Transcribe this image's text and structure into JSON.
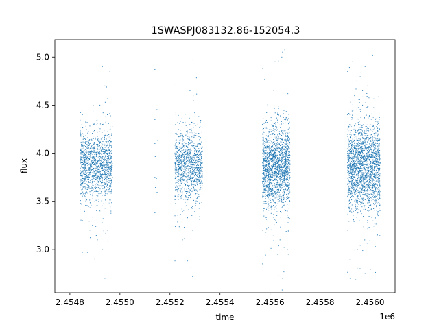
{
  "chart_data": {
    "type": "scatter",
    "title": "1SWASPJ083132.86-152054.3",
    "xlabel": "time",
    "ylabel": "flux",
    "x_offset_label": "1e6",
    "x_unit_scale": 1000000,
    "xlim": [
      2.45474,
      2.4561
    ],
    "ylim": [
      2.55,
      5.18
    ],
    "xticks": [
      2.4548,
      2.455,
      2.4552,
      2.4554,
      2.4556,
      2.4558,
      2.456
    ],
    "xtick_labels": [
      "2.4548",
      "2.4550",
      "2.4552",
      "2.4554",
      "2.4556",
      "2.4558",
      "2.4560"
    ],
    "yticks": [
      3.0,
      3.5,
      4.0,
      4.5,
      5.0
    ],
    "ytick_labels": [
      "3.0",
      "3.5",
      "4.0",
      "4.5",
      "5.0"
    ],
    "grid": false,
    "marker_color": "#1f77b4",
    "series": [
      {
        "points": [
          [
            2.45485,
            3.9
          ],
          [
            2.45485,
            3.55
          ],
          [
            2.45485,
            4.4
          ],
          [
            2.45485,
            3.3
          ],
          [
            2.45486,
            3.85
          ],
          [
            2.45486,
            4.15
          ],
          [
            2.45486,
            3.65
          ],
          [
            2.45487,
            3.95
          ],
          [
            2.45487,
            3.75
          ],
          [
            2.45488,
            4.1
          ],
          [
            2.45488,
            3.6
          ],
          [
            2.45489,
            3.9
          ],
          [
            2.45489,
            3.7
          ],
          [
            2.4549,
            4.2
          ],
          [
            2.4549,
            3.5
          ],
          [
            2.45491,
            3.85
          ],
          [
            2.45491,
            4.05
          ],
          [
            2.45492,
            3.75
          ],
          [
            2.45492,
            3.4
          ],
          [
            2.45493,
            3.95
          ],
          [
            2.45493,
            4.3
          ],
          [
            2.45494,
            3.8
          ],
          [
            2.45494,
            3.6
          ],
          [
            2.45495,
            4.0
          ],
          [
            2.45485,
            2.97
          ],
          [
            2.45487,
            2.97
          ],
          [
            2.4549,
            2.9
          ],
          [
            2.45488,
            3.2
          ],
          [
            2.45492,
            4.5
          ],
          [
            2.45493,
            4.9
          ],
          [
            2.45493,
            3.0
          ],
          [
            2.45494,
            2.7
          ],
          [
            2.45494,
            4.7
          ],
          [
            2.45495,
            3.2
          ],
          [
            2.45495,
            4.4
          ],
          [
            2.45496,
            3.9
          ],
          [
            2.45496,
            4.85
          ],
          [
            2.45497,
            3.75
          ],
          [
            2.45491,
            3.1
          ],
          [
            2.45489,
            3.25
          ],
          [
            2.45514,
            4.87
          ],
          [
            2.45514,
            4.1
          ],
          [
            2.45514,
            3.75
          ],
          [
            2.45514,
            3.38
          ],
          [
            2.45514,
            4.35
          ],
          [
            2.45522,
            3.9
          ],
          [
            2.45522,
            3.55
          ],
          [
            2.45522,
            4.2
          ],
          [
            2.45522,
            3.35
          ],
          [
            2.45522,
            4.72
          ],
          [
            2.45522,
            2.88
          ],
          [
            2.45523,
            3.8
          ],
          [
            2.45523,
            4.05
          ],
          [
            2.45524,
            3.65
          ],
          [
            2.45524,
            3.95
          ],
          [
            2.45525,
            3.7
          ],
          [
            2.45525,
            4.15
          ],
          [
            2.45526,
            3.85
          ],
          [
            2.45526,
            3.45
          ],
          [
            2.45527,
            4.0
          ],
          [
            2.45527,
            3.6
          ],
          [
            2.45528,
            4.25
          ],
          [
            2.45528,
            3.75
          ],
          [
            2.45528,
            4.65
          ],
          [
            2.45529,
            3.9
          ],
          [
            2.45529,
            3.2
          ],
          [
            2.45529,
            4.97
          ],
          [
            2.45529,
            2.72
          ],
          [
            2.4553,
            3.8
          ],
          [
            2.4553,
            4.1
          ],
          [
            2.45531,
            3.7
          ],
          [
            2.45531,
            3.5
          ],
          [
            2.45532,
            3.95
          ],
          [
            2.45532,
            4.2
          ],
          [
            2.45533,
            3.85
          ],
          [
            2.45527,
            2.88
          ],
          [
            2.45526,
            4.4
          ],
          [
            2.45525,
            3.1
          ],
          [
            2.45557,
            3.9
          ],
          [
            2.45557,
            3.55
          ],
          [
            2.45557,
            4.3
          ],
          [
            2.45557,
            3.2
          ],
          [
            2.45558,
            3.8
          ],
          [
            2.45558,
            4.1
          ],
          [
            2.45559,
            3.65
          ],
          [
            2.45559,
            3.95
          ],
          [
            2.4556,
            3.75
          ],
          [
            2.4556,
            4.25
          ],
          [
            2.45561,
            3.85
          ],
          [
            2.45561,
            3.45
          ],
          [
            2.45562,
            4.05
          ],
          [
            2.45562,
            3.6
          ],
          [
            2.45563,
            3.9
          ],
          [
            2.45563,
            4.4
          ],
          [
            2.45563,
            2.95
          ],
          [
            2.45564,
            3.7
          ],
          [
            2.45564,
            4.15
          ],
          [
            2.45565,
            3.8
          ],
          [
            2.45565,
            5.05
          ],
          [
            2.45565,
            2.7
          ],
          [
            2.45566,
            3.95
          ],
          [
            2.45566,
            3.5
          ],
          [
            2.45567,
            3.85
          ],
          [
            2.45567,
            4.2
          ],
          [
            2.45568,
            3.75
          ],
          [
            2.45557,
            4.88
          ],
          [
            2.45557,
            2.85
          ],
          [
            2.45562,
            4.95
          ],
          [
            2.45564,
            3.1
          ],
          [
            2.45566,
            4.6
          ],
          [
            2.45567,
            3.0
          ],
          [
            2.45591,
            3.9
          ],
          [
            2.45591,
            3.55
          ],
          [
            2.45591,
            4.4
          ],
          [
            2.45591,
            3.2
          ],
          [
            2.45592,
            3.8
          ],
          [
            2.45592,
            4.1
          ],
          [
            2.45593,
            3.65
          ],
          [
            2.45593,
            3.95
          ],
          [
            2.45594,
            3.75
          ],
          [
            2.45594,
            4.25
          ],
          [
            2.45595,
            3.85
          ],
          [
            2.45595,
            3.45
          ],
          [
            2.45596,
            4.05
          ],
          [
            2.45596,
            3.6
          ],
          [
            2.45597,
            3.9
          ],
          [
            2.45597,
            4.5
          ],
          [
            2.45598,
            3.7
          ],
          [
            2.45598,
            4.15
          ],
          [
            2.45599,
            3.8
          ],
          [
            2.45599,
            3.3
          ],
          [
            2.456,
            3.95
          ],
          [
            2.456,
            4.3
          ],
          [
            2.45601,
            3.85
          ],
          [
            2.45601,
            3.55
          ],
          [
            2.45602,
            4.0
          ],
          [
            2.45603,
            3.75
          ],
          [
            2.45604,
            3.9
          ],
          [
            2.45604,
            3.6
          ],
          [
            2.45591,
            4.85
          ],
          [
            2.45592,
            2.7
          ],
          [
            2.45593,
            4.95
          ],
          [
            2.45596,
            2.8
          ],
          [
            2.45598,
            4.9
          ],
          [
            2.45598,
            2.75
          ],
          [
            2.45599,
            4.7
          ],
          [
            2.45601,
            5.02
          ],
          [
            2.456,
            2.85
          ],
          [
            2.45603,
            3.15
          ],
          [
            2.45595,
            3.0
          ],
          [
            2.45597,
            4.65
          ]
        ]
      }
    ],
    "clusters": [
      {
        "x0": 2.45484,
        "x1": 2.45497,
        "mean": 3.87,
        "sd": 0.17,
        "n": 1400
      },
      {
        "x0": 2.45513,
        "x1": 2.45515,
        "mean": 3.95,
        "sd": 0.3,
        "n": 8
      },
      {
        "x0": 2.45522,
        "x1": 2.45533,
        "mean": 3.87,
        "sd": 0.18,
        "n": 1100
      },
      {
        "x0": 2.45557,
        "x1": 2.45568,
        "mean": 3.86,
        "sd": 0.2,
        "n": 1900
      },
      {
        "x0": 2.45591,
        "x1": 2.45604,
        "mean": 3.86,
        "sd": 0.22,
        "n": 2200
      }
    ]
  }
}
